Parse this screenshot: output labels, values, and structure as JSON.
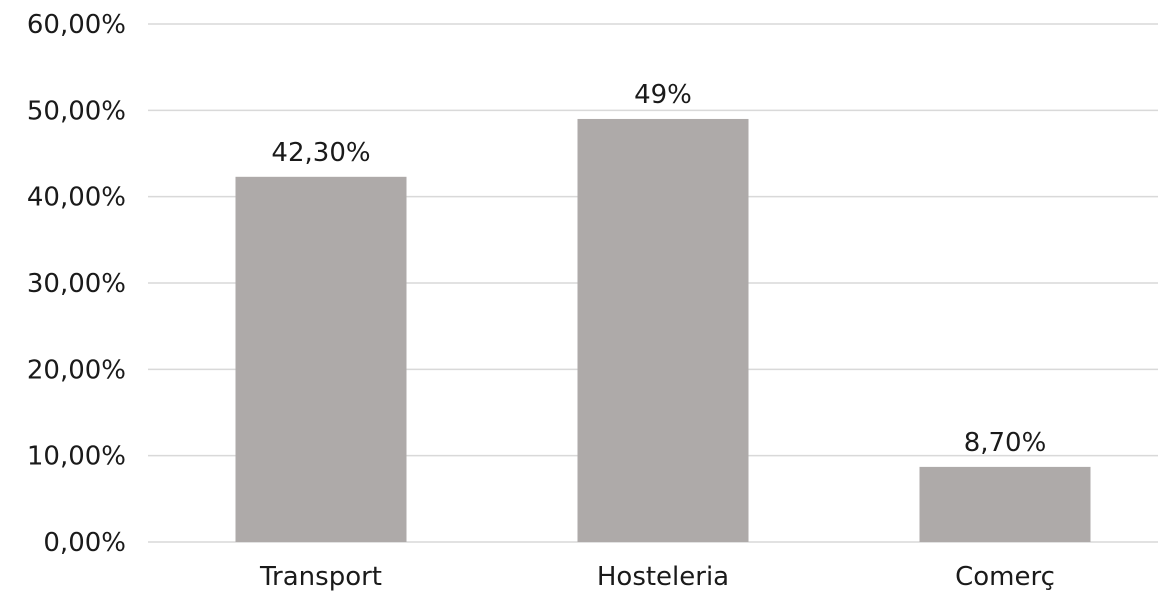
{
  "chart_data": {
    "type": "bar",
    "categories": [
      "Transport",
      "Hosteleria",
      "Comerç"
    ],
    "values": [
      42.3,
      49,
      8.7
    ],
    "data_labels": [
      "42,30%",
      "49%",
      "8,70%"
    ],
    "y_ticks": [
      0,
      10,
      20,
      30,
      40,
      50,
      60
    ],
    "y_tick_labels": [
      "0,00%",
      "10,00%",
      "20,00%",
      "30,00%",
      "40,00%",
      "50,00%",
      "60,00%"
    ],
    "ylim": [
      0,
      60
    ],
    "grid": true,
    "bar_color": "#aeaaa9",
    "gridline_color": "#d9d9d9"
  }
}
